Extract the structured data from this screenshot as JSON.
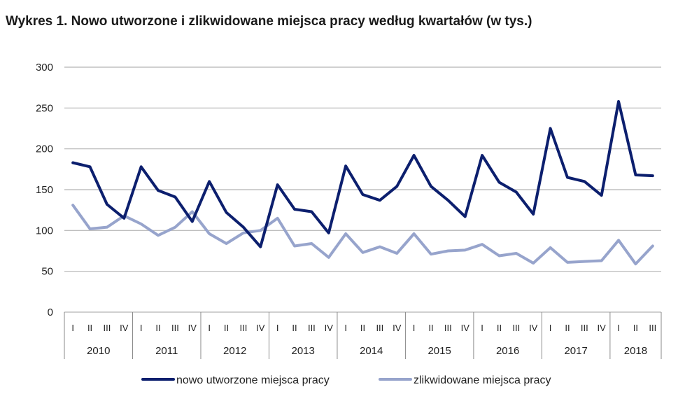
{
  "chart_data": {
    "type": "line",
    "title": "Wykres 1. Nowo utworzone i zlikwidowane miejsca pracy według kwartałów (w tys.)",
    "xlabel": "",
    "ylabel": "",
    "ylim": [
      0,
      300
    ],
    "yticks": [
      "0",
      "50",
      "100",
      "150",
      "200",
      "250",
      "300"
    ],
    "grid": true,
    "legend_position": "bottom",
    "years": [
      "2010",
      "2011",
      "2012",
      "2013",
      "2014",
      "2015",
      "2016",
      "2017",
      "2018"
    ],
    "categories": [
      "I",
      "II",
      "III",
      "IV",
      "I",
      "II",
      "III",
      "IV",
      "I",
      "II",
      "III",
      "IV",
      "I",
      "II",
      "III",
      "IV",
      "I",
      "II",
      "III",
      "IV",
      "I",
      "II",
      "III",
      "IV",
      "I",
      "II",
      "III",
      "IV",
      "I",
      "II",
      "III",
      "IV",
      "I",
      "II",
      "III"
    ],
    "series": [
      {
        "name": "nowo utworzone miejsca pracy",
        "color": "#0c1f6e",
        "values": [
          183,
          178,
          132,
          115,
          178,
          149,
          141,
          111,
          160,
          122,
          104,
          80,
          156,
          126,
          123,
          97,
          179,
          144,
          137,
          154,
          192,
          154,
          137,
          117,
          192,
          159,
          147,
          120,
          225,
          165,
          160,
          143,
          258,
          168,
          167
        ]
      },
      {
        "name": "zlikwidowane miejsca pracy",
        "color": "#97a4cc",
        "values": [
          131,
          102,
          104,
          118,
          108,
          94,
          104,
          123,
          96,
          84,
          97,
          100,
          115,
          81,
          84,
          67,
          96,
          73,
          80,
          72,
          96,
          71,
          75,
          76,
          83,
          69,
          72,
          60,
          79,
          61,
          62,
          63,
          88,
          59,
          81
        ]
      }
    ]
  }
}
